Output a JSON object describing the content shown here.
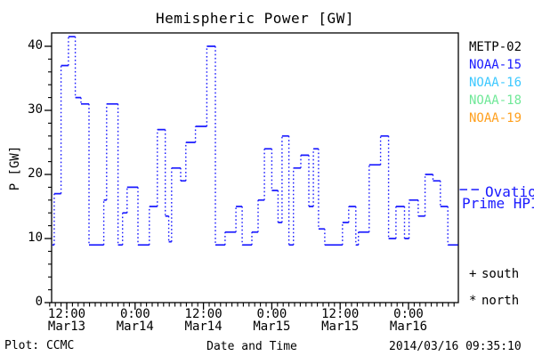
{
  "title": "Hemispheric Power [GW]",
  "colors": {
    "curve": "#1a1aff",
    "axis": "#000000",
    "metp02": "#000000",
    "noaa15": "#1a1aff",
    "noaa16": "#3cc8ff",
    "noaa18": "#70e898",
    "noaa19": "#ffa01e"
  },
  "legend": {
    "satellites": [
      {
        "label": "METP-02",
        "color": "#000000"
      },
      {
        "label": "NOAA-15",
        "color": "#1a1aff"
      },
      {
        "label": "NOAA-16",
        "color": "#3cc8ff"
      },
      {
        "label": "NOAA-18",
        "color": "#70e898"
      },
      {
        "label": "NOAA-19",
        "color": "#ffa01e"
      }
    ],
    "model_line1": "Ovation",
    "model_line2": "Prime HPI",
    "model_color": "#1a1aff"
  },
  "annotations": {
    "south_symbol": "+",
    "south_label": "south",
    "north_symbol": "*",
    "north_label": "north"
  },
  "footer": {
    "plot_credit": "Plot: CCMC",
    "xlabel": "Date and Time",
    "timestamp": "2014/03/16 09:35:10"
  },
  "chart_data": {
    "type": "line",
    "subtype": "step-histogram",
    "title": "Hemispheric Power [GW]",
    "xlabel": "Date and Time",
    "ylabel": "P [GW]",
    "ylim": [
      0,
      42
    ],
    "yticks": [
      0,
      10,
      20,
      30,
      40
    ],
    "y_minor_step": 2,
    "hours_reference": "hours since Mar13 00:00",
    "x_start_hour": 8.8,
    "x_end_hour": 80.7,
    "x_minor_step_hours": 1,
    "xticks": [
      {
        "hour": 12,
        "time": "12:00",
        "date": "Mar13"
      },
      {
        "hour": 24,
        "time": "0:00",
        "date": "Mar14"
      },
      {
        "hour": 36,
        "time": "12:00",
        "date": "Mar14"
      },
      {
        "hour": 48,
        "time": "0:00",
        "date": "Mar15"
      },
      {
        "hour": 60,
        "time": "12:00",
        "date": "Mar15"
      },
      {
        "hour": 72,
        "time": "0:00",
        "date": "Mar16"
      }
    ],
    "legend_position": "right",
    "grid": false,
    "series": [
      {
        "name": "Ovation Prime HPI",
        "color": "#1a1aff",
        "line_style": "solid horizontal steps with dotted vertical connectors",
        "steps_hour_value": [
          [
            8.8,
            9
          ],
          [
            9.8,
            17
          ],
          [
            11.0,
            37
          ],
          [
            12.3,
            41.5
          ],
          [
            13.5,
            32
          ],
          [
            14.5,
            31
          ],
          [
            15.9,
            9
          ],
          [
            18.5,
            16
          ],
          [
            19.0,
            31
          ],
          [
            21.0,
            9
          ],
          [
            21.8,
            14
          ],
          [
            22.6,
            18
          ],
          [
            24.5,
            9
          ],
          [
            26.5,
            15
          ],
          [
            27.9,
            27
          ],
          [
            29.3,
            13.5
          ],
          [
            29.9,
            9.5
          ],
          [
            30.4,
            21
          ],
          [
            32.0,
            19
          ],
          [
            32.9,
            25
          ],
          [
            34.6,
            27.5
          ],
          [
            36.6,
            40
          ],
          [
            38.1,
            9
          ],
          [
            39.8,
            11
          ],
          [
            41.7,
            15
          ],
          [
            42.8,
            9
          ],
          [
            44.5,
            11
          ],
          [
            45.6,
            16
          ],
          [
            46.7,
            24
          ],
          [
            48.0,
            17.5
          ],
          [
            49.1,
            12.5
          ],
          [
            49.8,
            26
          ],
          [
            51.0,
            9
          ],
          [
            51.8,
            21
          ],
          [
            53.1,
            23
          ],
          [
            54.5,
            15
          ],
          [
            55.3,
            24
          ],
          [
            56.2,
            11.5
          ],
          [
            57.3,
            9
          ],
          [
            60.4,
            12.5
          ],
          [
            61.5,
            15
          ],
          [
            62.75,
            9
          ],
          [
            63.2,
            11
          ],
          [
            65.1,
            21.5
          ],
          [
            67.1,
            26
          ],
          [
            68.5,
            10
          ],
          [
            69.8,
            15
          ],
          [
            71.3,
            10
          ],
          [
            72.1,
            16
          ],
          [
            73.7,
            13.5
          ],
          [
            74.9,
            20
          ],
          [
            76.3,
            19
          ],
          [
            77.6,
            15
          ],
          [
            78.9,
            9
          ]
        ]
      }
    ]
  }
}
